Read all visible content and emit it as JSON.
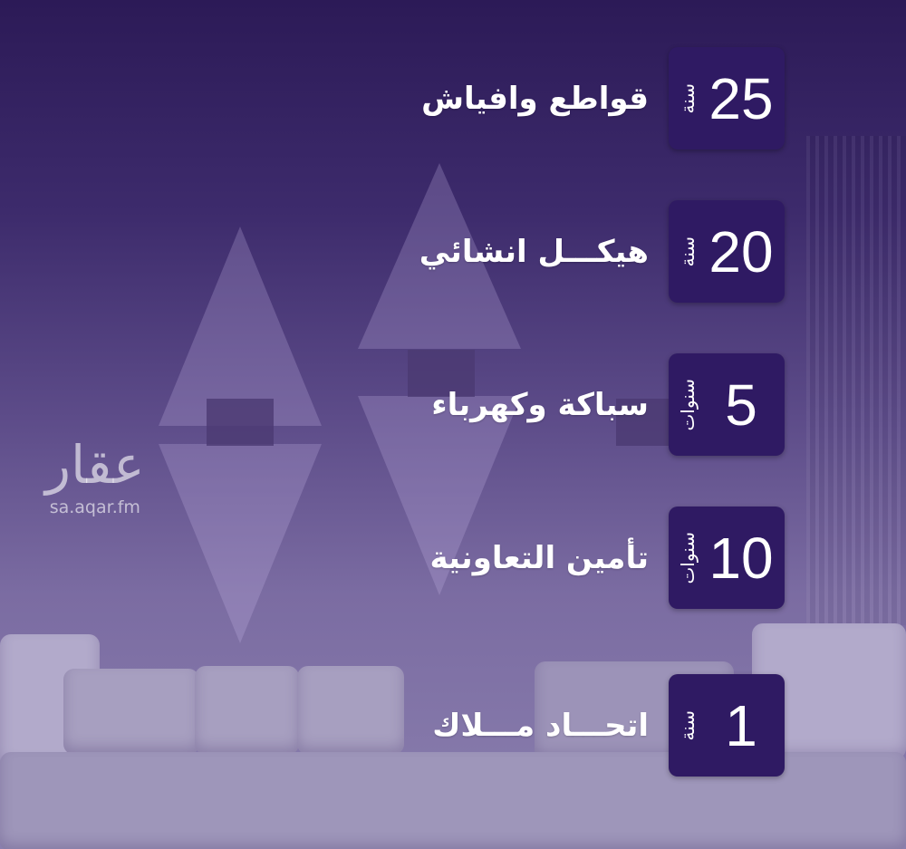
{
  "items": [
    {
      "value": "25",
      "unit": "سنة",
      "label": "قواطع وافياش"
    },
    {
      "value": "20",
      "unit": "سنة",
      "label": "هيكـــل انشائي"
    },
    {
      "value": "5",
      "unit": "سنوات",
      "label": "سباكة وكهرباء"
    },
    {
      "value": "10",
      "unit": "سنوات",
      "label": "تأمين التعاونية"
    },
    {
      "value": "1",
      "unit": "سنة",
      "label": "اتحـــاد مـــلاك"
    }
  ],
  "watermark": {
    "logo": "عقار",
    "url": "sa.aqar.fm"
  },
  "colors": {
    "box": "#2f1a63",
    "background_top": "#2c1a57",
    "background_bottom": "#8a7fae"
  }
}
